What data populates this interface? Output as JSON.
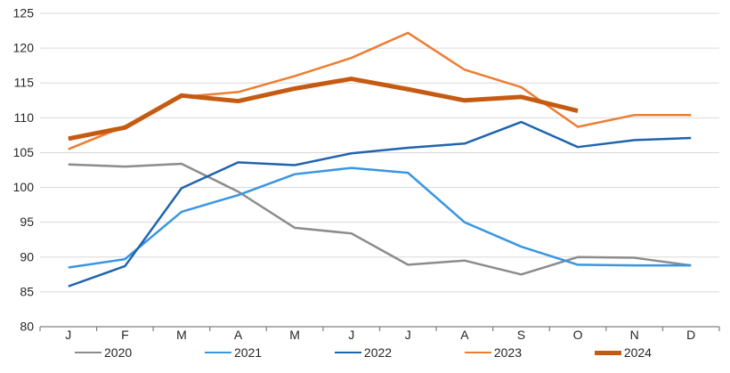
{
  "chart_data": {
    "type": "line",
    "title": "",
    "xlabel": "",
    "ylabel": "",
    "categories": [
      "J",
      "F",
      "M",
      "A",
      "M",
      "J",
      "J",
      "A",
      "S",
      "O",
      "N",
      "D"
    ],
    "series": [
      {
        "name": "2020",
        "color": "#8C8C8C",
        "stroke_width": 2.5,
        "values": [
          103.3,
          103.0,
          103.4,
          99.4,
          94.2,
          93.4,
          88.9,
          89.5,
          87.5,
          90.0,
          89.9,
          88.8
        ]
      },
      {
        "name": "2021",
        "color": "#3A96E0",
        "stroke_width": 2.5,
        "values": [
          88.5,
          89.7,
          96.5,
          98.9,
          101.9,
          102.8,
          102.1,
          95.0,
          91.5,
          88.9,
          88.8,
          88.8
        ]
      },
      {
        "name": "2022",
        "color": "#1F64AE",
        "stroke_width": 2.5,
        "values": [
          85.8,
          88.7,
          99.9,
          103.6,
          103.2,
          104.9,
          105.7,
          106.3,
          109.4,
          105.8,
          106.8,
          107.1
        ]
      },
      {
        "name": "2023",
        "color": "#ED7D31",
        "stroke_width": 2.5,
        "values": [
          105.5,
          108.8,
          113.0,
          113.7,
          116.0,
          118.6,
          122.2,
          116.9,
          114.4,
          108.7,
          110.4,
          110.4
        ]
      },
      {
        "name": "2024",
        "color": "#C55A11",
        "stroke_width": 5,
        "values": [
          107.0,
          108.6,
          113.2,
          112.4,
          114.2,
          115.6,
          114.1,
          112.5,
          113.0,
          111.0
        ]
      }
    ],
    "ylim": [
      80,
      125
    ],
    "ytick_step": 5,
    "ytick_labels": [
      "80",
      "85",
      "90",
      "95",
      "100",
      "105",
      "110",
      "115",
      "120",
      "125"
    ],
    "grid": true,
    "legend_position": "bottom",
    "legend_entries": [
      "2020",
      "2021",
      "2022",
      "2023",
      "2024"
    ],
    "colors": {
      "grid": "#D9D9D9",
      "axis": "#7F7F7F",
      "tick": "#7F7F7F",
      "labels": "#262626",
      "background": "#FFFFFF"
    }
  }
}
